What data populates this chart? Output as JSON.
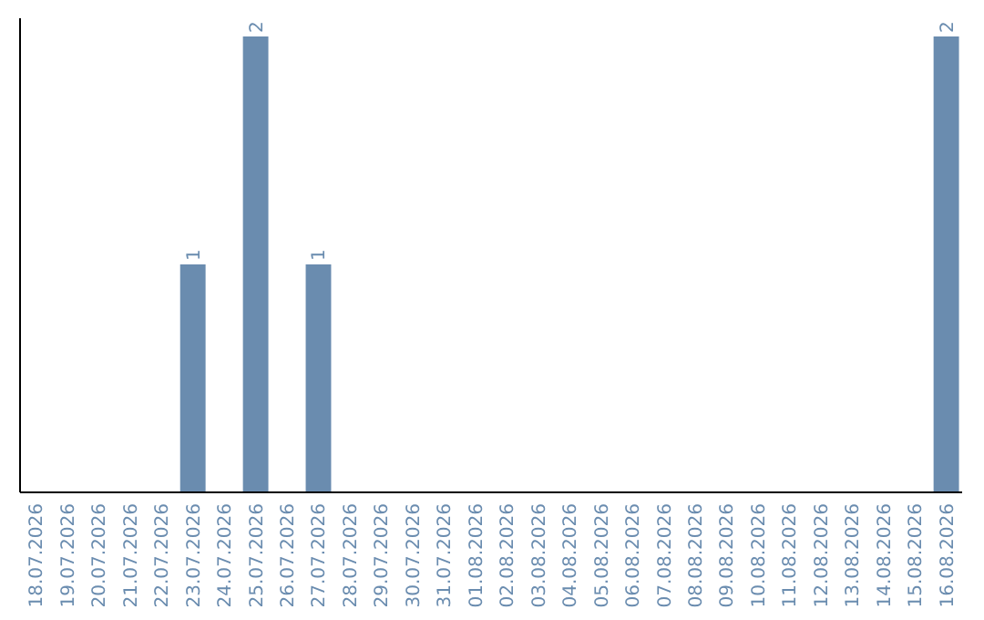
{
  "chart_data": {
    "type": "bar",
    "categories": [
      "18.07.2026",
      "19.07.2026",
      "20.07.2026",
      "21.07.2026",
      "22.07.2026",
      "23.07.2026",
      "24.07.2026",
      "25.07.2026",
      "26.07.2026",
      "27.07.2026",
      "28.07.2026",
      "29.07.2026",
      "30.07.2026",
      "31.07.2026",
      "01.08.2026",
      "02.08.2026",
      "03.08.2026",
      "04.08.2026",
      "05.08.2026",
      "06.08.2026",
      "07.08.2026",
      "08.08.2026",
      "09.08.2026",
      "10.08.2026",
      "11.08.2026",
      "12.08.2026",
      "13.08.2026",
      "14.08.2026",
      "15.08.2026",
      "16.08.2026"
    ],
    "values": [
      0,
      0,
      0,
      0,
      0,
      1,
      0,
      2,
      0,
      1,
      0,
      0,
      0,
      0,
      0,
      0,
      0,
      0,
      0,
      0,
      0,
      0,
      0,
      0,
      0,
      0,
      0,
      0,
      0,
      2
    ],
    "value_labels": [
      null,
      null,
      null,
      null,
      null,
      "1",
      null,
      "2",
      null,
      "1",
      null,
      null,
      null,
      null,
      null,
      null,
      null,
      null,
      null,
      null,
      null,
      null,
      null,
      null,
      null,
      null,
      null,
      null,
      null,
      "2"
    ],
    "color": "#6a8caf"
  }
}
